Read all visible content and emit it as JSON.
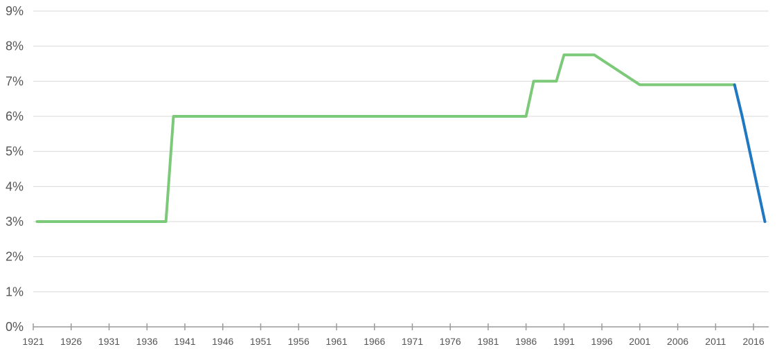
{
  "chart_data": {
    "type": "line",
    "title": "",
    "xlabel": "",
    "ylabel": "",
    "xlim": [
      1921,
      2018
    ],
    "ylim": [
      0,
      9
    ],
    "y_unit": "%",
    "grid": true,
    "y_ticks": [
      "0%",
      "1%",
      "2%",
      "3%",
      "4%",
      "5%",
      "6%",
      "7%",
      "8%",
      "9%"
    ],
    "x_ticks": [
      "1921",
      "1926",
      "1931",
      "1936",
      "1941",
      "1946",
      "1951",
      "1956",
      "1961",
      "1966",
      "1971",
      "1976",
      "1981",
      "1986",
      "1991",
      "1996",
      "2001",
      "2006",
      "2011",
      "2016"
    ],
    "series": [
      {
        "color": "#7dc97a",
        "x": [
          1921.5,
          1938.5,
          1939.5,
          1986,
          1987,
          1990,
          1991,
          1995,
          2001,
          2013.5
        ],
        "values": [
          3,
          3,
          6,
          6,
          7,
          7,
          7.75,
          7.75,
          6.9,
          6.9
        ]
      },
      {
        "color": "#1f78c1",
        "x": [
          2013.5,
          2014.5,
          2017.5
        ],
        "values": [
          6.9,
          6,
          3
        ]
      }
    ]
  }
}
